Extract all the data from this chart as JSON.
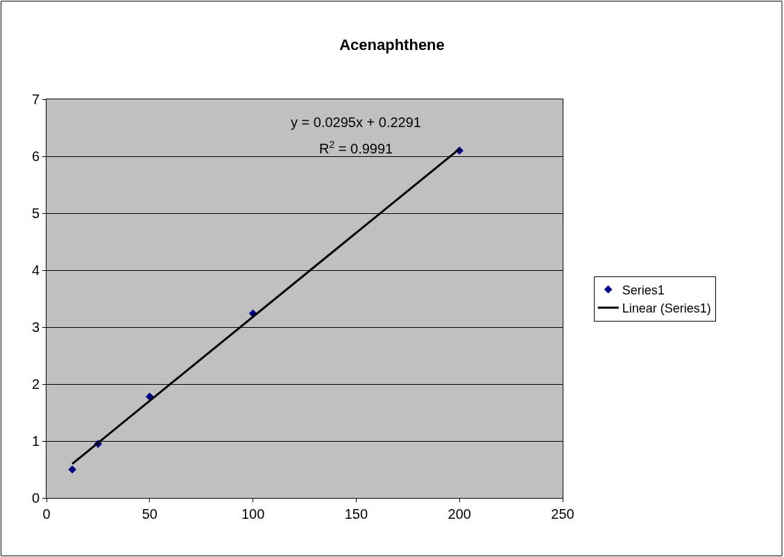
{
  "chart_data": {
    "type": "scatter",
    "title": "Acenaphthene",
    "annotations": [
      "y = 0.0295x + 0.2291",
      "R$^{2}$ = 0.9991"
    ],
    "xlim": [
      0,
      250
    ],
    "xticks": [
      0,
      50,
      100,
      150,
      200,
      250
    ],
    "ylim": [
      0,
      7
    ],
    "yticks": [
      0,
      1,
      2,
      3,
      4,
      5,
      6,
      7
    ],
    "grid": "y",
    "legend": "right",
    "marker": "diamond",
    "series": [
      {
        "name": "Series1",
        "color": "#000080",
        "x": [
          12.5,
          25,
          50,
          100,
          200
        ],
        "values": [
          0.5,
          0.95,
          1.78,
          3.24,
          6.1
        ]
      },
      {
        "name": "Linear (Series1)",
        "type": "line",
        "color": "#000000",
        "marker": "none",
        "x": [
          12.5,
          200
        ],
        "values": [
          0.6,
          6.13
        ]
      }
    ]
  }
}
